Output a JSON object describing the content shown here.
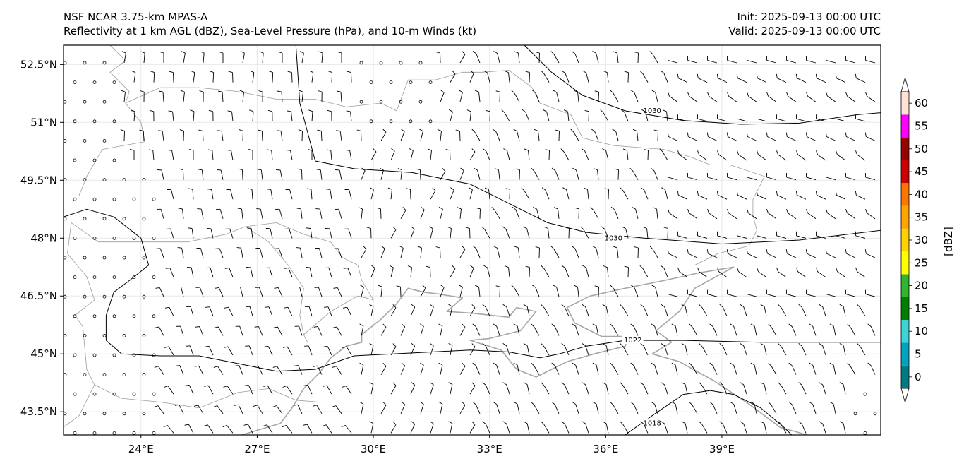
{
  "header": {
    "model_line": "NSF NCAR 3.75-km MPAS-A",
    "fields_line": "Reflectivity at 1 km AGL (dBZ), Sea-Level Pressure (hPa), and 10-m Winds (kt)",
    "init_line": "Init: 2025-09-13 00:00 UTC",
    "valid_line": "Valid: 2025-09-13 00:00 UTC"
  },
  "map": {
    "lon_range": [
      22.0,
      43.1
    ],
    "lat_range": [
      42.9,
      53.0
    ],
    "lat_ticks": [
      {
        "value": 52.5,
        "label": "52.5°N"
      },
      {
        "value": 51.0,
        "label": "51°N"
      },
      {
        "value": 49.5,
        "label": "49.5°N"
      },
      {
        "value": 48.0,
        "label": "48°N"
      },
      {
        "value": 46.5,
        "label": "46.5°N"
      },
      {
        "value": 45.0,
        "label": "45°N"
      },
      {
        "value": 43.5,
        "label": "43.5°N"
      }
    ],
    "lon_ticks": [
      {
        "value": 24,
        "label": "24°E"
      },
      {
        "value": 27,
        "label": "27°E"
      },
      {
        "value": 30,
        "label": "30°E"
      },
      {
        "value": 33,
        "label": "33°E"
      },
      {
        "value": 36,
        "label": "36°E"
      },
      {
        "value": 39,
        "label": "39°E"
      }
    ],
    "gridlines": true,
    "isobars": [
      {
        "label": "1030",
        "points": [
          [
            28.0,
            53.0
          ],
          [
            28.1,
            51.5
          ],
          [
            28.5,
            50.0
          ],
          [
            29.5,
            49.8
          ],
          [
            31.0,
            49.7
          ],
          [
            32.5,
            49.4
          ],
          [
            33.5,
            48.9
          ],
          [
            34.5,
            48.4
          ],
          [
            35.5,
            48.15
          ],
          [
            37.0,
            48.0
          ],
          [
            39.0,
            47.85
          ],
          [
            41.0,
            47.95
          ],
          [
            43.1,
            48.2
          ]
        ],
        "label_at": [
          36.2,
          48.0
        ]
      },
      {
        "label": "1030",
        "points": [
          [
            33.9,
            53.0
          ],
          [
            34.6,
            52.3
          ],
          [
            35.4,
            51.7
          ],
          [
            36.5,
            51.3
          ],
          [
            38.0,
            51.05
          ],
          [
            39.5,
            50.95
          ],
          [
            41.0,
            50.98
          ],
          [
            42.5,
            51.2
          ],
          [
            43.1,
            51.25
          ]
        ],
        "label_at": [
          37.2,
          51.3
        ]
      },
      {
        "label": "1022",
        "points": [
          [
            22.0,
            48.55
          ],
          [
            22.6,
            48.75
          ],
          [
            23.3,
            48.55
          ],
          [
            24.0,
            48.0
          ],
          [
            24.2,
            47.3
          ],
          [
            23.7,
            46.9
          ],
          [
            23.3,
            46.6
          ],
          [
            23.1,
            46.0
          ],
          [
            23.1,
            45.35
          ],
          [
            23.5,
            45.0
          ],
          [
            24.5,
            44.95
          ],
          [
            25.5,
            44.95
          ],
          [
            26.5,
            44.75
          ],
          [
            27.5,
            44.55
          ],
          [
            28.5,
            44.6
          ],
          [
            29.5,
            44.95
          ],
          [
            30.5,
            45.0
          ],
          [
            31.5,
            45.05
          ],
          [
            32.5,
            45.1
          ],
          [
            33.5,
            45.05
          ],
          [
            34.3,
            44.9
          ],
          [
            34.8,
            45.0
          ],
          [
            35.5,
            45.2
          ],
          [
            36.5,
            45.35
          ],
          [
            38.0,
            45.35
          ],
          [
            40.0,
            45.3
          ],
          [
            43.1,
            45.3
          ]
        ],
        "label_at": [
          36.7,
          45.35
        ]
      },
      {
        "label": "1018",
        "points": [
          [
            36.5,
            42.9
          ],
          [
            37.2,
            43.4
          ],
          [
            38.0,
            43.95
          ],
          [
            38.7,
            44.05
          ],
          [
            39.3,
            43.95
          ],
          [
            40.0,
            43.6
          ],
          [
            40.6,
            43.1
          ],
          [
            40.8,
            42.9
          ]
        ],
        "label_at": [
          37.2,
          43.2
        ]
      }
    ],
    "coastline": [
      [
        [
          26.6,
          42.9
        ],
        [
          27.6,
          43.2
        ],
        [
          27.9,
          43.6
        ],
        [
          28.2,
          44.1
        ],
        [
          28.6,
          44.5
        ],
        [
          28.9,
          44.9
        ],
        [
          29.3,
          45.2
        ],
        [
          29.7,
          45.3
        ],
        [
          29.7,
          45.5
        ],
        [
          30.2,
          45.9
        ],
        [
          30.6,
          46.3
        ],
        [
          30.9,
          46.7
        ],
        [
          31.3,
          46.6
        ],
        [
          31.7,
          46.55
        ],
        [
          32.3,
          46.45
        ],
        [
          31.9,
          46.1
        ],
        [
          32.6,
          46.05
        ],
        [
          33.5,
          45.95
        ],
        [
          33.7,
          46.2
        ],
        [
          34.2,
          46.1
        ],
        [
          33.8,
          45.6
        ],
        [
          33.0,
          45.4
        ],
        [
          32.5,
          45.35
        ],
        [
          33.3,
          45.1
        ],
        [
          33.7,
          44.6
        ],
        [
          34.2,
          44.4
        ],
        [
          35.0,
          44.8
        ],
        [
          35.7,
          45.0
        ],
        [
          36.5,
          45.2
        ],
        [
          36.6,
          45.45
        ],
        [
          35.9,
          45.45
        ],
        [
          35.2,
          45.8
        ],
        [
          35.0,
          46.2
        ],
        [
          35.6,
          46.5
        ],
        [
          36.5,
          46.7
        ],
        [
          37.5,
          46.9
        ],
        [
          38.4,
          47.1
        ],
        [
          39.3,
          47.25
        ],
        [
          38.3,
          46.7
        ],
        [
          37.9,
          46.1
        ],
        [
          37.3,
          45.6
        ],
        [
          37.7,
          45.3
        ],
        [
          37.2,
          45.0
        ],
        [
          37.9,
          44.8
        ],
        [
          38.8,
          44.3
        ],
        [
          39.7,
          43.7
        ],
        [
          40.5,
          43.1
        ],
        [
          41.2,
          42.9
        ]
      ]
    ],
    "reflectivity_echoes": "none"
  },
  "colorbar": {
    "unit_label": "[dBZ]",
    "tick_labels": [
      "0",
      "5",
      "10",
      "15",
      "20",
      "25",
      "30",
      "35",
      "40",
      "45",
      "50",
      "55",
      "60"
    ],
    "colors": [
      "#007b83",
      "#00a3c0",
      "#3ed3d6",
      "#008000",
      "#2fb52f",
      "#ffff00",
      "#ffd200",
      "#ffa500",
      "#ff7500",
      "#cc0000",
      "#990000",
      "#ff00ff",
      "#ffe2d3"
    ],
    "under_color": "#ffffff",
    "over_color": "#ffffff"
  }
}
